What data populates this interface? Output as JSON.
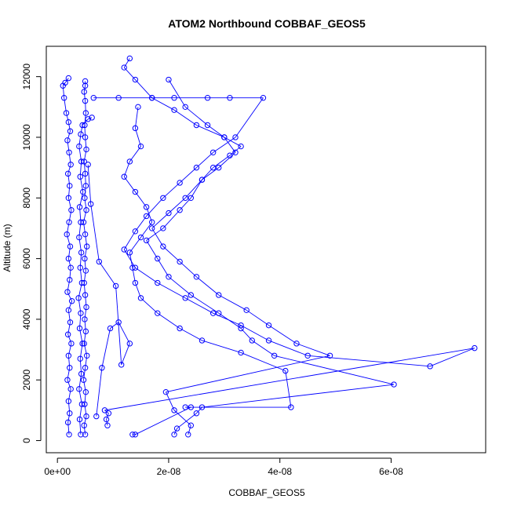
{
  "chart_data": {
    "type": "line",
    "title": "ATOM2 Northbound COBBAF_GEOS5",
    "xlabel": "COBBAF_GEOS5",
    "ylabel": "Altitude (m)",
    "xlim": [
      -2e-09,
      7.7e-08
    ],
    "ylim": [
      -400,
      13000
    ],
    "x_ticks": [
      {
        "value": 0,
        "label": "0e+00"
      },
      {
        "value": 2e-08,
        "label": "2e-08"
      },
      {
        "value": 4e-08,
        "label": "4e-08"
      },
      {
        "value": 6e-08,
        "label": "6e-08"
      }
    ],
    "y_ticks": [
      {
        "value": 0,
        "label": "0"
      },
      {
        "value": 2000,
        "label": "2000"
      },
      {
        "value": 4000,
        "label": "4000"
      },
      {
        "value": 6000,
        "label": "6000"
      },
      {
        "value": 8000,
        "label": "8000"
      },
      {
        "value": 10000,
        "label": "10000"
      },
      {
        "value": 12000,
        "label": "12000"
      }
    ],
    "grid": false,
    "legend": "none",
    "color": "#0000ff",
    "marker": "open-circle",
    "series": [
      {
        "x": [
          2.1e-09,
          1.9e-09,
          2.2e-09,
          2e-09,
          2.4e-09,
          1.8e-09,
          2.2e-09,
          2e-09,
          2.5e-09,
          1.9e-09,
          2.3e-09,
          2e-09,
          2.6e-09,
          1.8e-09,
          2.2e-09,
          2.4e-09,
          2e-09,
          2.3e-09,
          1.7e-09,
          2.1e-09,
          2.5e-09,
          2e-09,
          2.2e-09,
          1.9e-09,
          2.4e-09,
          2.1e-09,
          1.8e-09,
          2.3e-09,
          2e-09,
          1.6e-09,
          1.2e-09,
          1e-09,
          1.4e-09,
          2e-09
        ],
        "y": [
          200,
          600,
          900,
          1300,
          1700,
          2000,
          2400,
          2800,
          3200,
          3500,
          3900,
          4300,
          4600,
          4900,
          5300,
          5700,
          6000,
          6400,
          6800,
          7200,
          7600,
          8000,
          8400,
          8800,
          9100,
          9500,
          9900,
          10200,
          10500,
          10800,
          11300,
          11700,
          11800,
          11950
        ]
      },
      {
        "x": [
          5e-09,
          4.8e-09,
          5.2e-09,
          4.9e-09,
          5.1e-09,
          4.7e-09,
          5e-09,
          5.3e-09,
          4.8e-09,
          5.1e-09,
          4.9e-09,
          5.2e-09,
          5e-09,
          4.8e-09,
          5.1e-09,
          4.9e-09,
          5.3e-09,
          5e-09,
          4.7e-09,
          5.2e-09,
          4.9e-09,
          5.1e-09,
          5e-09,
          4.8e-09,
          5.2e-09,
          5e-09,
          4.9e-09,
          5.1e-09,
          5e-09,
          4.8e-09,
          5e-09,
          5e-09
        ],
        "y": [
          200,
          500,
          800,
          1200,
          1600,
          2000,
          2400,
          2800,
          3200,
          3600,
          4000,
          4400,
          4800,
          5200,
          5600,
          6000,
          6400,
          6800,
          7200,
          7600,
          8000,
          8400,
          8800,
          9200,
          9600,
          10000,
          10400,
          10800,
          11200,
          11500,
          11700,
          11850
        ]
      },
      {
        "x": [
          4.2e-09,
          4e-09,
          4.4e-09,
          3.9e-09,
          4.3e-09,
          4.1e-09,
          4.5e-09,
          4e-09,
          4.2e-09,
          3.8e-09,
          4.4e-09,
          4.1e-09,
          4.3e-09,
          3.9e-09,
          4.2e-09,
          4e-09,
          4.6e-09,
          4.1e-09,
          4.3e-09,
          3.9e-09,
          4.2e-09,
          4.5e-09,
          5.5e-09,
          6.2e-09
        ],
        "y": [
          200,
          700,
          1200,
          1700,
          2200,
          2700,
          3200,
          3700,
          4200,
          4700,
          5200,
          5700,
          6200,
          6700,
          7200,
          7700,
          8200,
          8700,
          9200,
          9700,
          10100,
          10400,
          10600,
          10650
        ]
      },
      {
        "x": [
          1.35e-08,
          1.4e-08,
          2.4e-08,
          2.3e-08,
          4.2e-08,
          4.1e-08,
          3.3e-08,
          2.6e-08,
          2.2e-08,
          1.8e-08,
          1.5e-08,
          1.4e-08,
          1.35e-08,
          1.3e-08,
          1.5e-08,
          1.7e-08,
          1.6e-08,
          1.4e-08,
          1.2e-08,
          1.3e-08,
          1.5e-08,
          1.4e-08,
          1.45e-08
        ],
        "y": [
          200,
          200,
          1100,
          1100,
          1100,
          2300,
          2900,
          3300,
          3700,
          4200,
          4700,
          5200,
          5700,
          6200,
          6700,
          7200,
          7700,
          8200,
          8700,
          9200,
          9700,
          10300,
          11000
        ]
      },
      {
        "x": [
          2.1e-08,
          2.15e-08,
          2.5e-08,
          2.6e-08,
          6.05e-08,
          3.9e-08,
          3.5e-08,
          3.3e-08,
          2.9e-08,
          2.4e-08,
          2e-08,
          1.8e-08,
          1.6e-08,
          1.9e-08,
          2.2e-08,
          2.4e-08,
          2.6e-08,
          2.8e-08,
          3.1e-08,
          3.3e-08,
          3e-08,
          2.7e-08,
          2.3e-08,
          2e-08
        ],
        "y": [
          200,
          400,
          900,
          1100,
          1850,
          2800,
          3300,
          3700,
          4200,
          4800,
          5400,
          6000,
          6600,
          7000,
          7600,
          8000,
          8600,
          9000,
          9400,
          9700,
          10000,
          10400,
          11000,
          11900
        ]
      },
      {
        "x": [
          2.35e-08,
          2.4e-08,
          2.1e-08,
          1.95e-08,
          4.9e-08,
          4.3e-08,
          3.8e-08,
          3.4e-08,
          2.9e-08,
          2.5e-08,
          2.2e-08,
          1.9e-08,
          1.7e-08,
          2e-08,
          2.3e-08,
          2.6e-08,
          2.9e-08,
          3.2e-08,
          3e-08,
          2.5e-08,
          2.1e-08,
          1.7e-08,
          1.4e-08,
          1.2e-08,
          1.3e-08
        ],
        "y": [
          200,
          500,
          1000,
          1600,
          2800,
          3200,
          3800,
          4300,
          4800,
          5400,
          5900,
          6400,
          7000,
          7500,
          8000,
          8600,
          9000,
          9500,
          10000,
          10400,
          10900,
          11300,
          11900,
          12300,
          12600
        ]
      },
      {
        "x": [
          9e-09,
          8.8e-09,
          9.2e-09,
          8.5e-09,
          7.5e-08,
          6.7e-08,
          4.5e-08,
          3.8e-08,
          3.3e-08,
          2.8e-08,
          2.3e-08,
          1.8e-08,
          1.4e-08,
          1.2e-08,
          1.4e-08,
          1.6e-08,
          1.9e-08,
          2.2e-08,
          2.5e-08,
          2.8e-08,
          3.2e-08,
          3.7e-08,
          3.1e-08,
          2.7e-08,
          2.1e-08,
          1.7e-08,
          1.1e-08,
          6.5e-09
        ],
        "y": [
          500,
          700,
          900,
          1000,
          3050,
          2450,
          2800,
          3300,
          3800,
          4200,
          4700,
          5200,
          5700,
          6300,
          6900,
          7400,
          8000,
          8500,
          9000,
          9500,
          10000,
          11300,
          11300,
          11300,
          11300,
          11300,
          11300,
          11300
        ]
      },
      {
        "x": [
          7e-09,
          8e-09,
          9.5e-09,
          1.1e-08,
          1.3e-08,
          1.15e-08,
          1.05e-08,
          7.5e-09,
          6e-09,
          5.5e-09
        ],
        "y": [
          800,
          2400,
          3700,
          3900,
          3200,
          2500,
          5100,
          5900,
          7800,
          9100
        ]
      }
    ]
  }
}
